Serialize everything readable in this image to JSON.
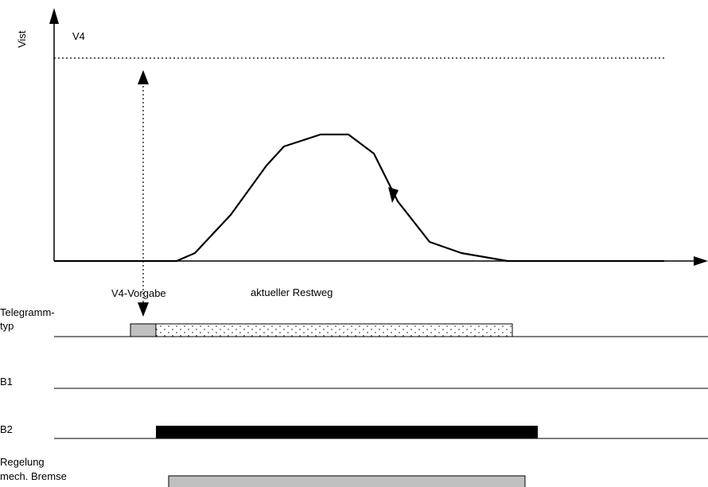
{
  "labels": {
    "y_axis": "Vist",
    "v4": "V4",
    "v4_vorgabe": "V4-Vorgabe",
    "restweg": "aktueller Restweg",
    "telegramm_line1": "Telegramm-",
    "telegramm_line2": "typ",
    "b1": "B1",
    "b2": "B2",
    "regelung_line1": "Regelung",
    "regelung_line2": "mech. Bremse"
  },
  "colors": {
    "line": "#000000",
    "telegram_start_block": "#c0c0c0",
    "brake_bar": "#c0c0c0",
    "b2_bar": "#000000"
  }
}
